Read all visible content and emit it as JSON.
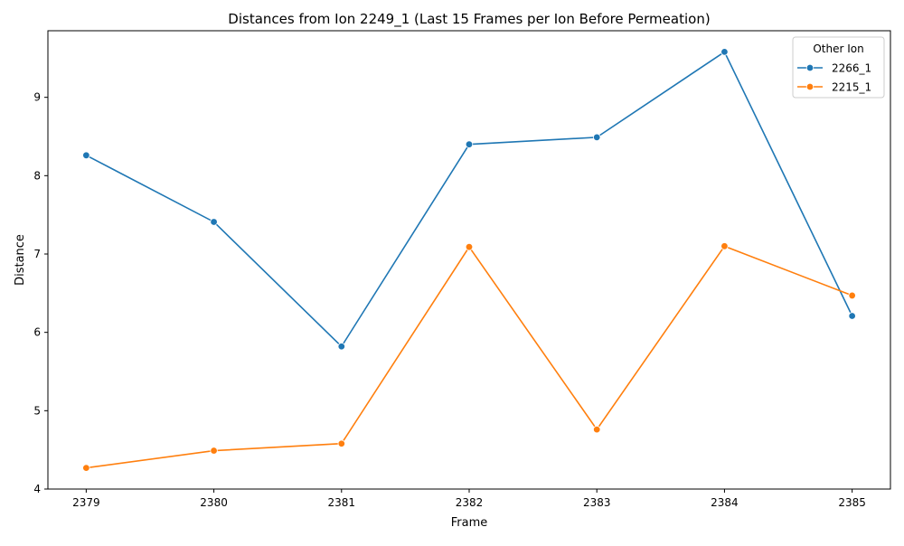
{
  "chart_data": {
    "type": "line",
    "title": "Distances from Ion 2249_1 (Last 15 Frames per Ion Before Permeation)",
    "xlabel": "Frame",
    "ylabel": "Distance",
    "x": [
      2379,
      2380,
      2381,
      2382,
      2383,
      2384,
      2385
    ],
    "xlim": [
      2378.7,
      2385.3
    ],
    "ylim": [
      4.0,
      9.85
    ],
    "yticks": [
      4,
      5,
      6,
      7,
      8,
      9
    ],
    "grid": false,
    "legend": {
      "title": "Other Ion",
      "position": "top-right"
    },
    "series": [
      {
        "name": "2266_1",
        "color": "#1f77b4",
        "values": [
          8.26,
          7.41,
          5.82,
          8.4,
          8.49,
          9.58,
          6.21
        ]
      },
      {
        "name": "2215_1",
        "color": "#ff7f0e",
        "values": [
          4.27,
          4.49,
          4.58,
          7.09,
          4.76,
          7.1,
          6.47
        ]
      }
    ]
  }
}
